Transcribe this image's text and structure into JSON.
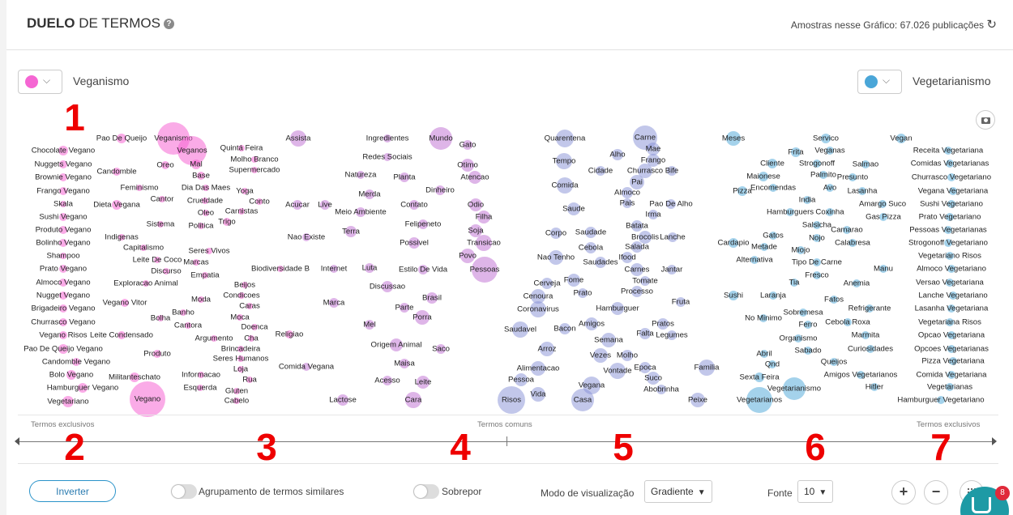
{
  "header": {
    "title_bold": "DUELO",
    "title_rest": " DE TERMOS",
    "help_icon": "help-circle-icon",
    "samples_label": "Amostras nesse Gráfico: 67.026 publicações",
    "refresh_icon": "refresh-icon"
  },
  "left_term": {
    "label": "Veganismo",
    "color": "#f566d3"
  },
  "right_term": {
    "label": "Vegetarianismo",
    "color": "#4aa6d8"
  },
  "camera_icon": "camera-icon",
  "axis": {
    "left": "Termos exclusivos",
    "center": "Termos comuns",
    "right": "Termos exclusivos"
  },
  "annotations": [
    "1",
    "2",
    "3",
    "4",
    "5",
    "6",
    "7"
  ],
  "footer": {
    "invert_label": "Inverter",
    "grouping_label": "Agrupamento de termos similares",
    "overlay_label": "Sobrepor",
    "view_mode_label": "Modo de visualização",
    "view_mode_value": "Gradiente",
    "font_label": "Fonte",
    "font_value": "10",
    "zoom_in_icon": "plus-icon",
    "zoom_out_icon": "minus-icon",
    "fit_icon": "fit-screen-icon",
    "chat_icon": "chat-icon",
    "chat_badge": "8"
  },
  "words": [
    {
      "t": "Pao De Queijo",
      "c": 0
    },
    {
      "t": "Veganismo",
      "c": 0
    },
    {
      "t": "Chocolate Vegano",
      "c": 0
    },
    {
      "t": "Veganos",
      "c": 0
    },
    {
      "t": "Quintá Feira",
      "c": 0
    },
    {
      "t": "Nuggets Vegano",
      "c": 0
    },
    {
      "t": "Oreo",
      "c": 0
    },
    {
      "t": "Mal",
      "c": 0
    },
    {
      "t": "Molho Branco",
      "c": 0
    },
    {
      "t": "Brownie Vegano",
      "c": 0
    },
    {
      "t": "Candomble",
      "c": 0
    },
    {
      "t": "Base",
      "c": 0
    },
    {
      "t": "Supermercado",
      "c": 0
    },
    {
      "t": "Frango Vegano",
      "c": 0
    },
    {
      "t": "Feminismo",
      "c": 0
    },
    {
      "t": "Dia Das Maes",
      "c": 0
    },
    {
      "t": "Yoga",
      "c": 0
    },
    {
      "t": "Cantor",
      "c": 0
    },
    {
      "t": "Crueldade",
      "c": 0
    },
    {
      "t": "Conto",
      "c": 0
    },
    {
      "t": "Skala",
      "c": 0
    },
    {
      "t": "Dieta Vegana",
      "c": 0
    },
    {
      "t": "Oleo",
      "c": 0
    },
    {
      "t": "Carnistas",
      "c": 0
    },
    {
      "t": "Sushi Vegano",
      "c": 0
    },
    {
      "t": "Sistema",
      "c": 0
    },
    {
      "t": "Politica",
      "c": 0
    },
    {
      "t": "Trigo",
      "c": 0
    },
    {
      "t": "Produto Vegano",
      "c": 0
    },
    {
      "t": "Indigenas",
      "c": 0
    },
    {
      "t": "Bolinho Vegano",
      "c": 0
    },
    {
      "t": "Capitalismo",
      "c": 0
    },
    {
      "t": "Seres Vivos",
      "c": 0
    },
    {
      "t": "Shampoo",
      "c": 0
    },
    {
      "t": "Leite De Coco",
      "c": 0
    },
    {
      "t": "Marcas",
      "c": 0
    },
    {
      "t": "Prato Vegano",
      "c": 0
    },
    {
      "t": "Discurso",
      "c": 0
    },
    {
      "t": "Biodiversidade B",
      "c": 0
    },
    {
      "t": "Empatia",
      "c": 0
    },
    {
      "t": "Almoco Vegano",
      "c": 0
    },
    {
      "t": "Exploracao Animal",
      "c": 0
    },
    {
      "t": "Beijos",
      "c": 0
    },
    {
      "t": "Nugget Vegano",
      "c": 0
    },
    {
      "t": "Condicoes",
      "c": 0
    },
    {
      "t": "Vegano Vitor",
      "c": 0
    },
    {
      "t": "Moda",
      "c": 0
    },
    {
      "t": "Brigadeiro Vegano",
      "c": 0
    },
    {
      "t": "Caras",
      "c": 0
    },
    {
      "t": "Banho",
      "c": 0
    },
    {
      "t": "Bolha",
      "c": 0
    },
    {
      "t": "Moca",
      "c": 0
    },
    {
      "t": "Churrasco Vegano",
      "c": 0
    },
    {
      "t": "Cantora",
      "c": 0
    },
    {
      "t": "Doenca",
      "c": 0
    },
    {
      "t": "Vegano Risos",
      "c": 0
    },
    {
      "t": "Leite Condensado",
      "c": 0
    },
    {
      "t": "Argumento",
      "c": 0
    },
    {
      "t": "Cha",
      "c": 0
    },
    {
      "t": "Religiao",
      "c": 0
    },
    {
      "t": "Pao De Queijo Vegano",
      "c": 0
    },
    {
      "t": "Brincadeira",
      "c": 0
    },
    {
      "t": "Produto",
      "c": 0
    },
    {
      "t": "Seres Humanos",
      "c": 0
    },
    {
      "t": "Candomble Vegano",
      "c": 0
    },
    {
      "t": "Loja",
      "c": 0
    },
    {
      "t": "Bolo Vegano",
      "c": 0
    },
    {
      "t": "Militanteschato",
      "c": 0
    },
    {
      "t": "Informacao",
      "c": 0
    },
    {
      "t": "Rua",
      "c": 0
    },
    {
      "t": "Hamburguer Vegano",
      "c": 0
    },
    {
      "t": "Esquerda",
      "c": 0
    },
    {
      "t": "Gluten",
      "c": 0
    },
    {
      "t": "Vegetariano",
      "c": 0
    },
    {
      "t": "Vegano",
      "c": 0
    },
    {
      "t": "Cabelo",
      "c": 0
    },
    {
      "t": "Assista",
      "c": 1
    },
    {
      "t": "Ingredientes",
      "c": 1
    },
    {
      "t": "Mundo",
      "c": 1
    },
    {
      "t": "Gato",
      "c": 1
    },
    {
      "t": "Redes Sociais",
      "c": 1
    },
    {
      "t": "Otimo",
      "c": 1
    },
    {
      "t": "Natureza",
      "c": 1
    },
    {
      "t": "Planta",
      "c": 1
    },
    {
      "t": "Atencao",
      "c": 1
    },
    {
      "t": "Merda",
      "c": 1
    },
    {
      "t": "Dinheiro",
      "c": 1
    },
    {
      "t": "Acucar",
      "c": 1
    },
    {
      "t": "Live",
      "c": 1
    },
    {
      "t": "Meio Ambiente",
      "c": 1
    },
    {
      "t": "Contato",
      "c": 1
    },
    {
      "t": "Odio",
      "c": 1
    },
    {
      "t": "Filha",
      "c": 1
    },
    {
      "t": "Felipeneto",
      "c": 1
    },
    {
      "t": "Terra",
      "c": 1
    },
    {
      "t": "Soja",
      "c": 1
    },
    {
      "t": "Nao Existe",
      "c": 1
    },
    {
      "t": "Possivel",
      "c": 1
    },
    {
      "t": "Transicao",
      "c": 1
    },
    {
      "t": "Povo",
      "c": 1
    },
    {
      "t": "Luta",
      "c": 1
    },
    {
      "t": "Internet",
      "c": 1
    },
    {
      "t": "Estilo De Vida",
      "c": 1
    },
    {
      "t": "Pessoas",
      "c": 1
    },
    {
      "t": "Discussao",
      "c": 1
    },
    {
      "t": "Brasil",
      "c": 1
    },
    {
      "t": "Marca",
      "c": 1
    },
    {
      "t": "Parte",
      "c": 1
    },
    {
      "t": "Porra",
      "c": 1
    },
    {
      "t": "Mel",
      "c": 1
    },
    {
      "t": "Origem Animal",
      "c": 1
    },
    {
      "t": "Saco",
      "c": 1
    },
    {
      "t": "Maisa",
      "c": 1
    },
    {
      "t": "Comida Vegana",
      "c": 1
    },
    {
      "t": "Acesso",
      "c": 1
    },
    {
      "t": "Leite",
      "c": 1
    },
    {
      "t": "Lactose",
      "c": 1
    },
    {
      "t": "Cara",
      "c": 1
    },
    {
      "t": "Quarentena",
      "c": 2
    },
    {
      "t": "Carne",
      "c": 2
    },
    {
      "t": "Mae",
      "c": 2
    },
    {
      "t": "Alho",
      "c": 2
    },
    {
      "t": "Tempo",
      "c": 2
    },
    {
      "t": "Frango",
      "c": 2
    },
    {
      "t": "Cidade",
      "c": 2
    },
    {
      "t": "Churrasco",
      "c": 2
    },
    {
      "t": "Bife",
      "c": 2
    },
    {
      "t": "Pai",
      "c": 2
    },
    {
      "t": "Comida",
      "c": 2
    },
    {
      "t": "Almoco",
      "c": 2
    },
    {
      "t": "Pais",
      "c": 2
    },
    {
      "t": "Pao De Alho",
      "c": 2
    },
    {
      "t": "Saude",
      "c": 2
    },
    {
      "t": "Irma",
      "c": 2
    },
    {
      "t": "Batata",
      "c": 2
    },
    {
      "t": "Corpo",
      "c": 2
    },
    {
      "t": "Saudade",
      "c": 2
    },
    {
      "t": "Brocolis",
      "c": 2
    },
    {
      "t": "Lanche",
      "c": 2
    },
    {
      "t": "Cebola",
      "c": 2
    },
    {
      "t": "Salada",
      "c": 2
    },
    {
      "t": "Nao Tenho",
      "c": 2
    },
    {
      "t": "Ifood",
      "c": 2
    },
    {
      "t": "Saudades",
      "c": 2
    },
    {
      "t": "Carnes",
      "c": 2
    },
    {
      "t": "Jantar",
      "c": 2
    },
    {
      "t": "Fome",
      "c": 2
    },
    {
      "t": "Cerveja",
      "c": 2
    },
    {
      "t": "Tomate",
      "c": 2
    },
    {
      "t": "Prato",
      "c": 2
    },
    {
      "t": "Processo",
      "c": 2
    },
    {
      "t": "Cenoura",
      "c": 2
    },
    {
      "t": "Fruta",
      "c": 2
    },
    {
      "t": "Hamburguer",
      "c": 2
    },
    {
      "t": "Coronavirus",
      "c": 2
    },
    {
      "t": "Pratos",
      "c": 2
    },
    {
      "t": "Amigos",
      "c": 2
    },
    {
      "t": "Bacon",
      "c": 2
    },
    {
      "t": "Falta",
      "c": 2
    },
    {
      "t": "Legumes",
      "c": 2
    },
    {
      "t": "Saudavel",
      "c": 2
    },
    {
      "t": "Semana",
      "c": 2
    },
    {
      "t": "Arroz",
      "c": 2
    },
    {
      "t": "Molho",
      "c": 2
    },
    {
      "t": "Vezes",
      "c": 2
    },
    {
      "t": "Alimentacao",
      "c": 2
    },
    {
      "t": "Epoca",
      "c": 2
    },
    {
      "t": "Vontade",
      "c": 2
    },
    {
      "t": "Familia",
      "c": 2
    },
    {
      "t": "Suco",
      "c": 2
    },
    {
      "t": "Pessoa",
      "c": 2
    },
    {
      "t": "Vegana",
      "c": 2
    },
    {
      "t": "Abobrinha",
      "c": 2
    },
    {
      "t": "Vida",
      "c": 2
    },
    {
      "t": "Risos",
      "c": 2
    },
    {
      "t": "Casa",
      "c": 2
    },
    {
      "t": "Peixe",
      "c": 2
    },
    {
      "t": "Meses",
      "c": 3
    },
    {
      "t": "Servico",
      "c": 3
    },
    {
      "t": "Vegan",
      "c": 3
    },
    {
      "t": "Frita",
      "c": 3
    },
    {
      "t": "Veganas",
      "c": 3
    },
    {
      "t": "Receita Vegetariana",
      "c": 3
    },
    {
      "t": "Cliente",
      "c": 3
    },
    {
      "t": "Strogonoff",
      "c": 3
    },
    {
      "t": "Salmao",
      "c": 3
    },
    {
      "t": "Comidas Vegetarianas",
      "c": 3
    },
    {
      "t": "Maionese",
      "c": 3
    },
    {
      "t": "Palmito",
      "c": 3
    },
    {
      "t": "Presunto",
      "c": 3
    },
    {
      "t": "Churrasco Vegetariano",
      "c": 3
    },
    {
      "t": "Pizza",
      "c": 3
    },
    {
      "t": "Encomendas",
      "c": 3
    },
    {
      "t": "Avo",
      "c": 3
    },
    {
      "t": "Lasanha",
      "c": 3
    },
    {
      "t": "Vegana Vegetariana",
      "c": 3
    },
    {
      "t": "India",
      "c": 3
    },
    {
      "t": "Amargo Suco",
      "c": 3
    },
    {
      "t": "Sushi Vegetariano",
      "c": 3
    },
    {
      "t": "Hamburguers",
      "c": 3
    },
    {
      "t": "Coxinha",
      "c": 3
    },
    {
      "t": "Gas Pizza",
      "c": 3
    },
    {
      "t": "Prato Vegetariano",
      "c": 3
    },
    {
      "t": "Salsicha",
      "c": 3
    },
    {
      "t": "Camarao",
      "c": 3
    },
    {
      "t": "Pessoas Vegetarianas",
      "c": 3
    },
    {
      "t": "Gatos",
      "c": 3
    },
    {
      "t": "Nojo",
      "c": 3
    },
    {
      "t": "Cardapio",
      "c": 3
    },
    {
      "t": "Calabresa",
      "c": 3
    },
    {
      "t": "Strogonoff Vegetariano",
      "c": 3
    },
    {
      "t": "Metade",
      "c": 3
    },
    {
      "t": "Miojo",
      "c": 3
    },
    {
      "t": "Vegetariano Risos",
      "c": 3
    },
    {
      "t": "Alternativa",
      "c": 3
    },
    {
      "t": "Tipo De Carne",
      "c": 3
    },
    {
      "t": "Manu",
      "c": 3
    },
    {
      "t": "Almoco Vegetariano",
      "c": 3
    },
    {
      "t": "Fresco",
      "c": 3
    },
    {
      "t": "Tia",
      "c": 3
    },
    {
      "t": "Anemia",
      "c": 3
    },
    {
      "t": "Versao Vegetariana",
      "c": 3
    },
    {
      "t": "Sushi",
      "c": 3
    },
    {
      "t": "Laranja",
      "c": 3
    },
    {
      "t": "Fatos",
      "c": 3
    },
    {
      "t": "Lanche Vegetariano",
      "c": 3
    },
    {
      "t": "Sobremesa",
      "c": 3
    },
    {
      "t": "Refrigerante",
      "c": 3
    },
    {
      "t": "Lasanha Vegetariana",
      "c": 3
    },
    {
      "t": "No Minimo",
      "c": 3
    },
    {
      "t": "Ferro",
      "c": 3
    },
    {
      "t": "Cebola Roxa",
      "c": 3
    },
    {
      "t": "Vegetariana Risos",
      "c": 3
    },
    {
      "t": "Marmita",
      "c": 3
    },
    {
      "t": "Organismo",
      "c": 3
    },
    {
      "t": "Opcao Vegetariana",
      "c": 3
    },
    {
      "t": "Sabado",
      "c": 3
    },
    {
      "t": "Curiosidades",
      "c": 3
    },
    {
      "t": "Abril",
      "c": 3
    },
    {
      "t": "Opcoes Vegetarianas",
      "c": 3
    },
    {
      "t": "Queijos",
      "c": 3
    },
    {
      "t": "Qnd",
      "c": 3
    },
    {
      "t": "Pizza Vegetariana",
      "c": 3
    },
    {
      "t": "Amigos Vegetarianos",
      "c": 3
    },
    {
      "t": "Sexta Feira",
      "c": 3
    },
    {
      "t": "Comida Vegetariana",
      "c": 3
    },
    {
      "t": "Vegetarianismo",
      "c": 3
    },
    {
      "t": "Hitler",
      "c": 3
    },
    {
      "t": "Vegetarianas",
      "c": 3
    },
    {
      "t": "Vegetarianos",
      "c": 3
    },
    {
      "t": "Hamburguer Vegetariano",
      "c": 3
    }
  ]
}
